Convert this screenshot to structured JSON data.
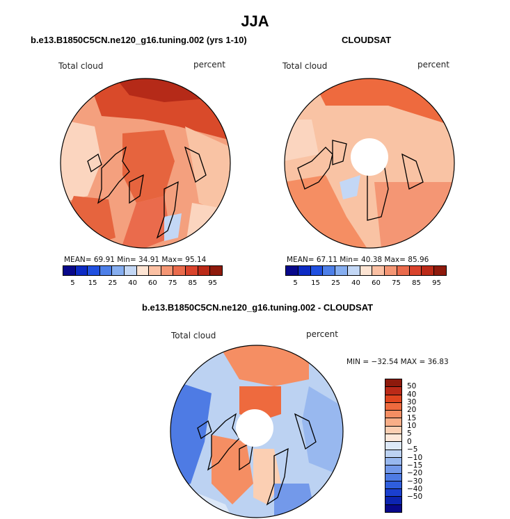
{
  "title": "JJA",
  "panels": {
    "model": {
      "title": "b.e13.B1850C5CN.ne120_g16.tuning.002 (yrs 1-10)",
      "left_label": "Total cloud",
      "right_label": "percent",
      "stats": "MEAN=   69.91   Min=   34.91   Max=   95.14",
      "base_color": "#f4a07e",
      "hole": false
    },
    "obs": {
      "title": "CLOUDSAT",
      "left_label": "Total cloud",
      "right_label": "percent",
      "stats": "MEAN=   67.11   Min=   40.38   Max=   85.96",
      "base_color": "#f9c3a4",
      "hole": true
    },
    "diff": {
      "title": "b.e13.B1850C5CN.ne120_g16.tuning.002 - CLOUDSAT",
      "left_label": "Total cloud",
      "right_label": "percent",
      "minmax": "MIN = −32.54 MAX =  36.83",
      "hole": true
    }
  },
  "abs_colorbar": {
    "colors": [
      "#08088a",
      "#0d2bc4",
      "#2050e0",
      "#4d7fe8",
      "#86aef0",
      "#c3d7f5",
      "#fde4d3",
      "#fbc0a3",
      "#f49674",
      "#ea6b4c",
      "#d9432c",
      "#bb2a18",
      "#8e1a0c"
    ],
    "labels": [
      "5",
      "15",
      "25",
      "40",
      "60",
      "75",
      "85",
      "95"
    ]
  },
  "diff_colorbar": {
    "colors_top_to_bottom": [
      "#8e1a0c",
      "#bb2a18",
      "#e0451f",
      "#ee6a3e",
      "#f58e63",
      "#f8ae88",
      "#fbcfb3",
      "#fde8da",
      "#dde8f7",
      "#bcd2f2",
      "#98b8ef",
      "#7399ea",
      "#4e7be4",
      "#2f5edd",
      "#1a3fcf",
      "#0c24b0",
      "#08088a"
    ],
    "labels_top_to_bottom": [
      "50",
      "40",
      "30",
      "20",
      "15",
      "10",
      "5",
      "0",
      "−5",
      "−10",
      "−15",
      "−20",
      "−30",
      "−40",
      "−50"
    ]
  }
}
